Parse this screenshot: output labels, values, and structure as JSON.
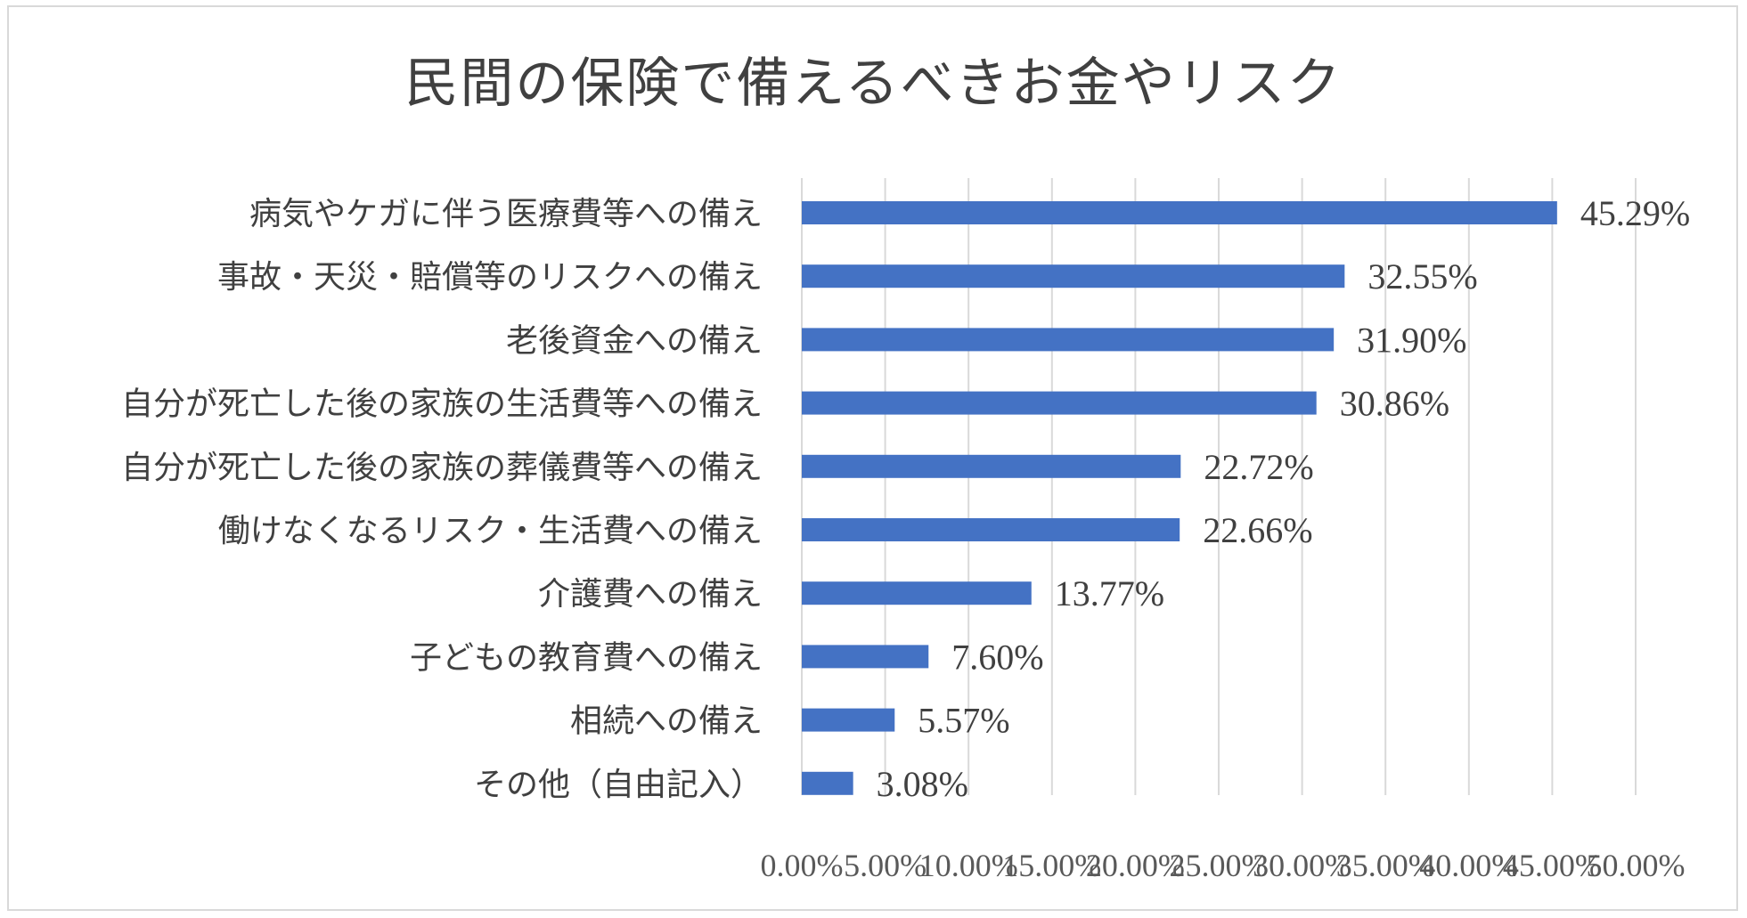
{
  "chart_data": {
    "type": "bar",
    "orientation": "horizontal",
    "title": "民間の保険で備えるべきお金やリスク",
    "categories": [
      "病気やケガに伴う医療費等への備え",
      "事故・天災・賠償等のリスクへの備え",
      "老後資金への備え",
      "自分が死亡した後の家族の生活費等への備え",
      "自分が死亡した後の家族の葬儀費等への備え",
      "働けなくなるリスク・生活費への備え",
      "介護費への備え",
      "子どもの教育費への備え",
      "相続への備え",
      "その他（自由記入）"
    ],
    "values": [
      45.29,
      32.55,
      31.9,
      30.86,
      22.72,
      22.66,
      13.77,
      7.6,
      5.57,
      3.08
    ],
    "value_labels": [
      "45.29%",
      "32.55%",
      "31.90%",
      "30.86%",
      "22.72%",
      "22.66%",
      "13.77%",
      "7.60%",
      "5.57%",
      "3.08%"
    ],
    "xlim": [
      0,
      50
    ],
    "x_ticks": [
      0,
      5,
      10,
      15,
      20,
      25,
      30,
      35,
      40,
      45,
      50
    ],
    "x_tick_labels": [
      "0.00%",
      "5.00%",
      "10.00%",
      "15.00%",
      "20.00%",
      "25.00%",
      "30.00%",
      "35.00%",
      "40.00%",
      "45.00%",
      "50.00%"
    ],
    "xlabel": "",
    "ylabel": "",
    "grid": "vertical",
    "legend": "none",
    "bar_color": "#4472c4",
    "grid_color": "#d9d9d9"
  }
}
